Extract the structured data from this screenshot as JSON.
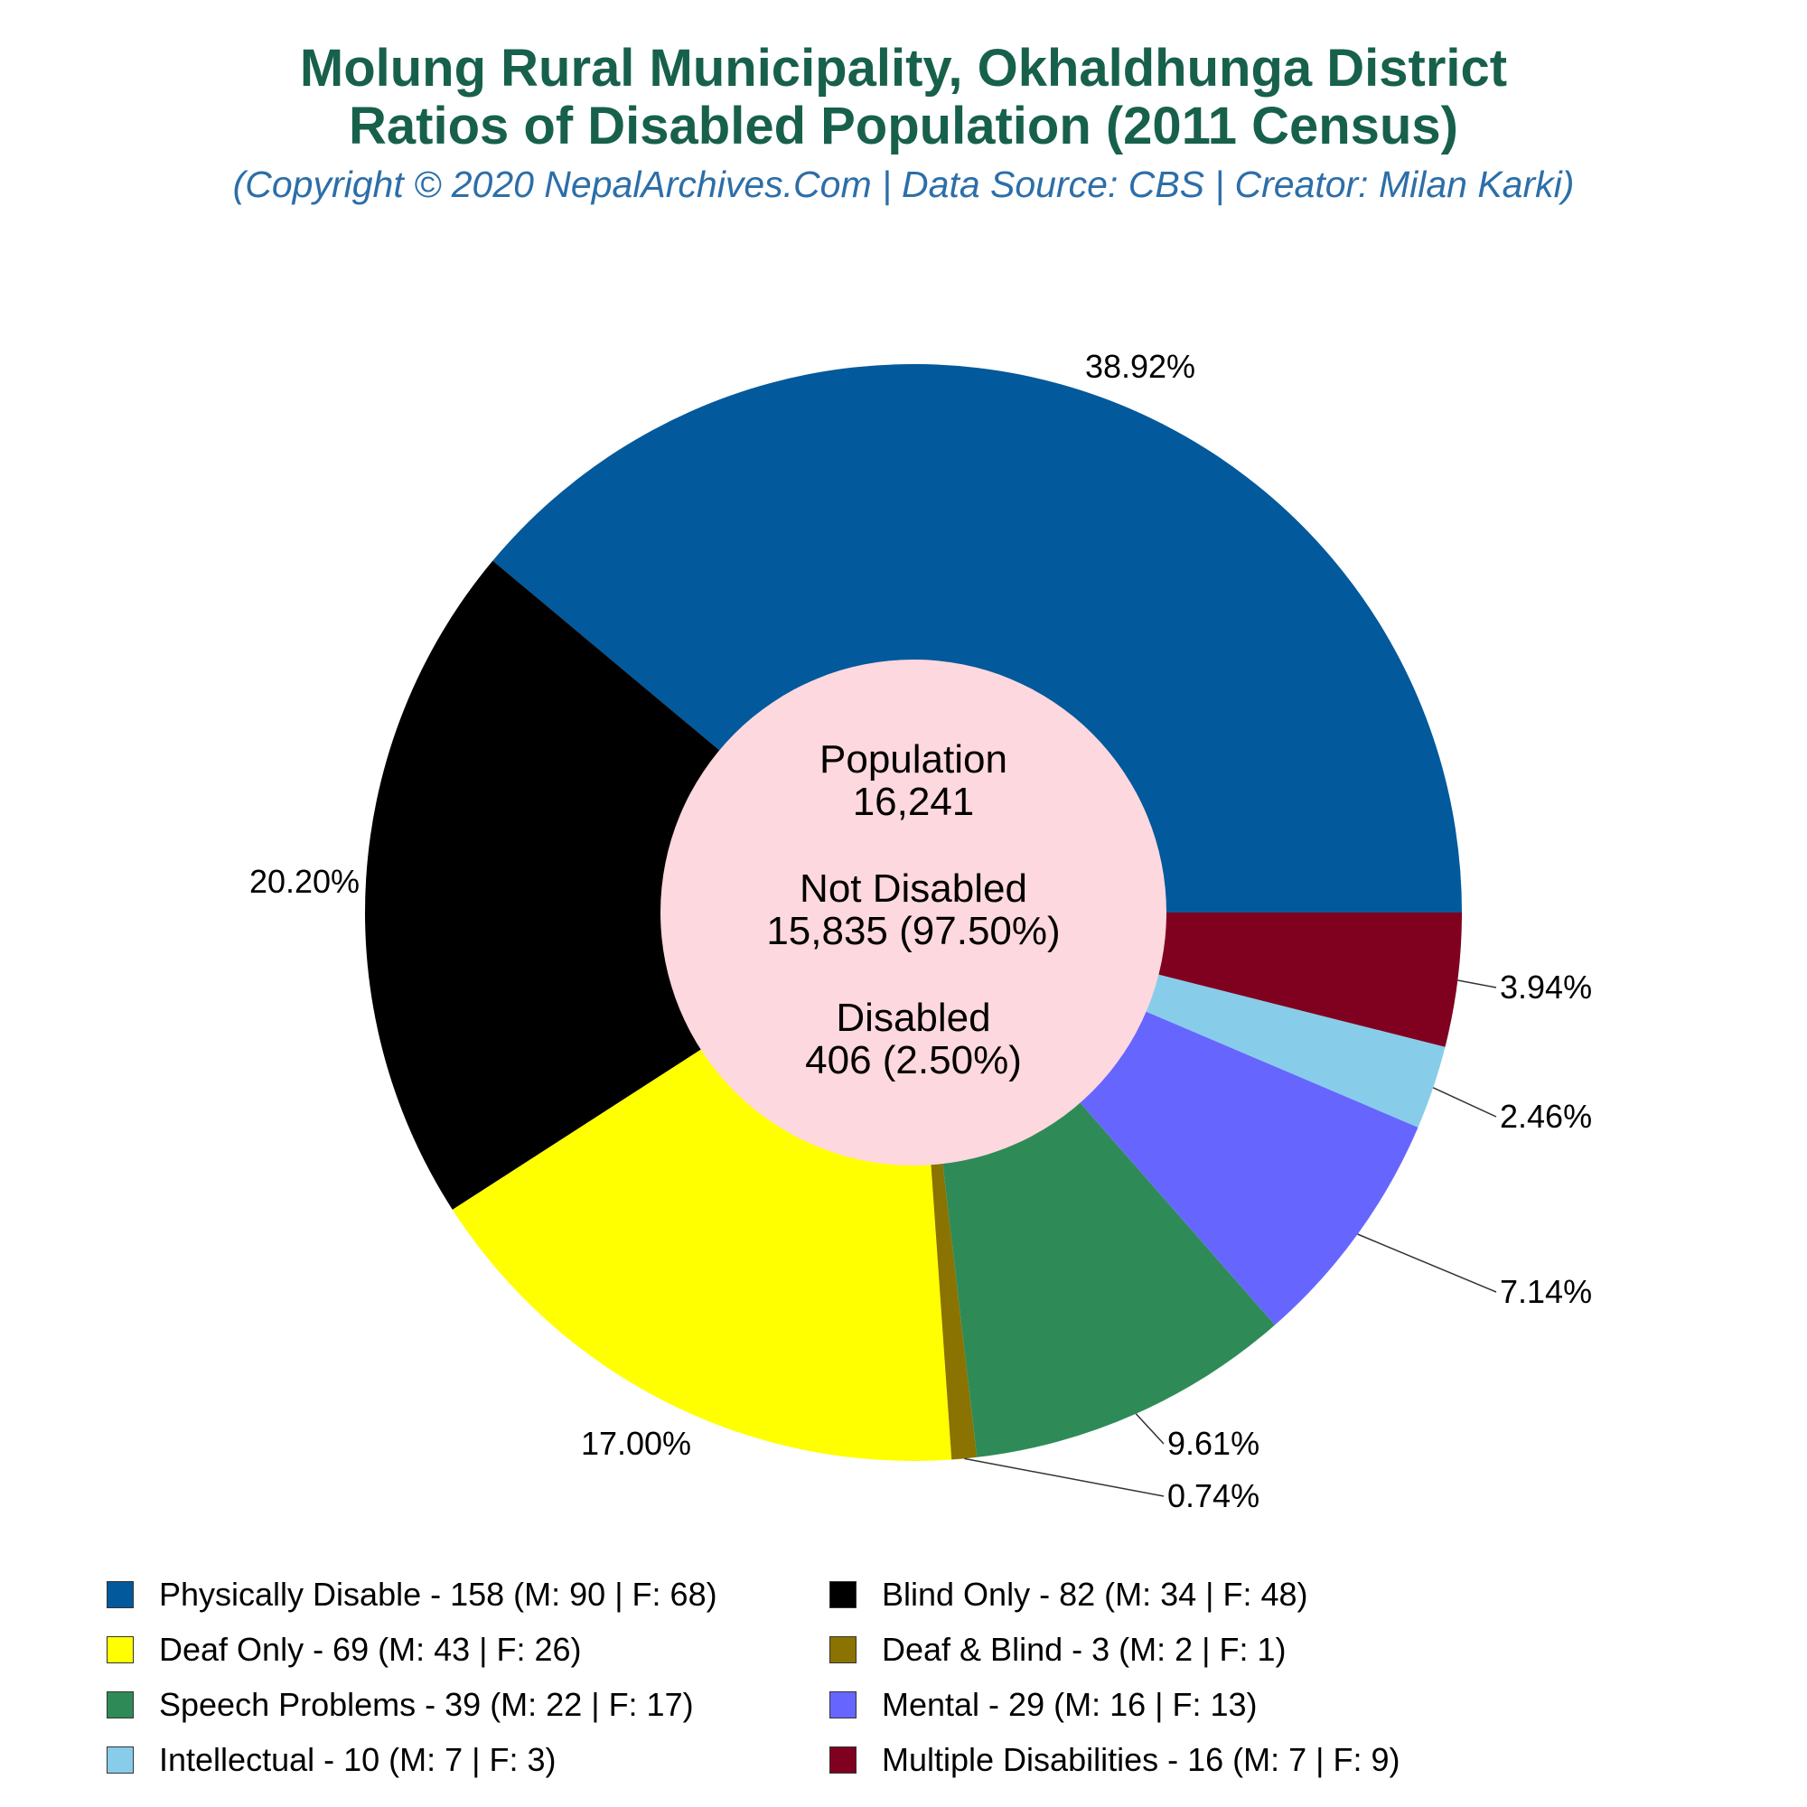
{
  "title_line1": "Molung Rural Municipality, Okhaldhunga District",
  "title_line2": "Ratios of Disabled Population (2011 Census)",
  "subtitle": "(Copyright © 2020 NepalArchives.Com | Data Source: CBS | Creator: Milan Karki)",
  "center": {
    "population_label": "Population",
    "population_value": "16,241",
    "not_disabled_label": "Not Disabled",
    "not_disabled_value": "15,835 (97.50%)",
    "disabled_label": "Disabled",
    "disabled_value": "406 (2.50%)",
    "fill": "#fdd8de"
  },
  "chart_data": {
    "type": "pie",
    "style": "donut",
    "categories": [
      "Physically Disable",
      "Blind Only",
      "Deaf Only",
      "Deaf & Blind",
      "Speech Problems",
      "Mental",
      "Intellectual",
      "Multiple Disabilities"
    ],
    "values": [
      158,
      82,
      69,
      3,
      39,
      29,
      10,
      16
    ],
    "percent_labels": [
      "38.92%",
      "20.20%",
      "17.00%",
      "0.74%",
      "9.61%",
      "7.14%",
      "2.46%",
      "3.94%"
    ],
    "colors": [
      "#02599c",
      "#000000",
      "#ffff00",
      "#8a7300",
      "#2e8b57",
      "#6666ff",
      "#87cdea",
      "#800020"
    ],
    "legend_labels": [
      "Physically Disable - 158 (M: 90 | F: 68)",
      "Blind Only - 82 (M: 34 | F: 48)",
      "Deaf Only - 69 (M: 43 | F: 26)",
      "Deaf & Blind - 3 (M: 2 | F: 1)",
      "Speech Problems - 39 (M: 22 | F: 17)",
      "Mental - 29 (M: 16 | F: 13)",
      "Intellectual - 10 (M: 7 | F: 3)",
      "Multiple Disabilities - 16 (M: 7 | F: 9)"
    ],
    "legend_placement": "bottom",
    "start_angle": "3 o'clock",
    "direction": "counterclockwise"
  }
}
